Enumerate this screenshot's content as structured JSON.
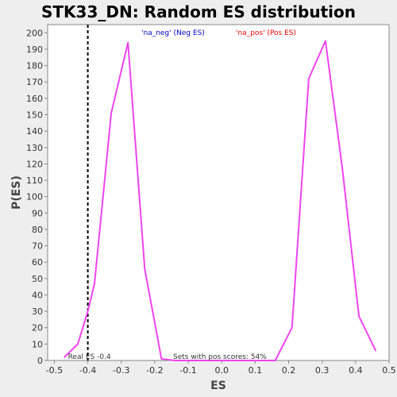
{
  "chart_data": {
    "type": "line",
    "title": "STK33_DN: Random ES distribution",
    "xlabel": "ES",
    "ylabel": "P(ES)",
    "xlim": [
      -0.52,
      0.5
    ],
    "ylim": [
      0,
      205
    ],
    "x_ticks": [
      "-0.5",
      "-0.4",
      "-0.3",
      "-0.2",
      "-0.1",
      "0.0",
      "0.1",
      "0.2",
      "0.3",
      "0.4",
      "0.5"
    ],
    "y_ticks": [
      "0",
      "10",
      "20",
      "30",
      "40",
      "50",
      "60",
      "70",
      "80",
      "90",
      "100",
      "110",
      "120",
      "130",
      "140",
      "150",
      "160",
      "170",
      "180",
      "190",
      "200"
    ],
    "grid": false,
    "series": [
      {
        "color": "#ee44ee",
        "points": [
          [
            -0.47,
            2
          ],
          [
            -0.43,
            10
          ],
          [
            -0.4,
            30
          ],
          [
            -0.38,
            47
          ],
          [
            -0.33,
            151
          ],
          [
            -0.28,
            194
          ],
          [
            -0.23,
            56
          ],
          [
            -0.18,
            1
          ],
          [
            -0.14,
            0
          ],
          [
            -0.1,
            0
          ],
          [
            -0.05,
            0
          ],
          [
            0.0,
            0
          ],
          [
            0.05,
            0
          ],
          [
            0.1,
            0
          ],
          [
            0.16,
            0
          ],
          [
            0.21,
            20
          ],
          [
            0.26,
            172
          ],
          [
            0.31,
            195
          ],
          [
            0.36,
            118
          ],
          [
            0.41,
            27
          ],
          [
            0.46,
            6
          ]
        ]
      }
    ],
    "legend": {
      "placement": "top",
      "entries": [
        {
          "label": "'na_neg' (Neg ES)",
          "color": "#0000cc"
        },
        {
          "label": "'na_pos' (Pos ES)",
          "color": "#ee0000"
        }
      ]
    },
    "real_es": {
      "value": -0.4,
      "label": "Real ES -0.4"
    },
    "annotation": "Sets with pos scores: 54%"
  }
}
